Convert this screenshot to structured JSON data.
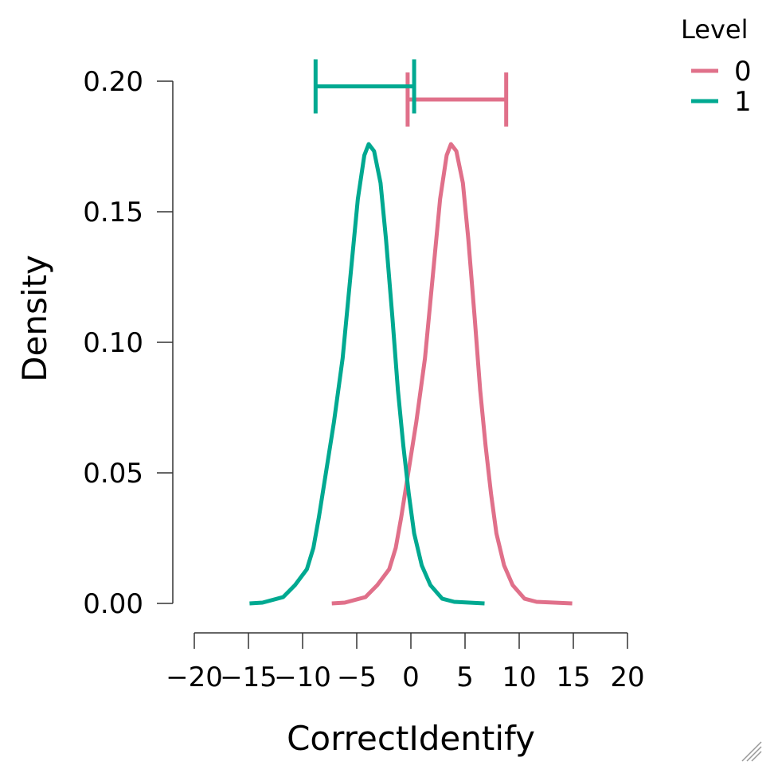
{
  "chart_data": {
    "type": "line",
    "title": "",
    "xlabel": "CorrectIdentify",
    "ylabel": "Density",
    "xlim": [
      -20,
      20
    ],
    "ylim": [
      0,
      0.2
    ],
    "xticks": [
      "-20",
      "-15",
      "-10",
      "-5",
      "0",
      "5",
      "10",
      "15",
      "20"
    ],
    "yticks": [
      "0.00",
      "0.05",
      "0.10",
      "0.15",
      "0.20"
    ],
    "grid": false,
    "legend": {
      "title": "Level",
      "placement": "top-right"
    },
    "series": [
      {
        "name": "0",
        "color": "#e0708a",
        "x": [
          -7.3,
          -6.1,
          -4.2,
          -3.1,
          -2.0,
          -1.4,
          -0.9,
          -0.2,
          0.5,
          1.3,
          2.0,
          2.7,
          3.3,
          3.7,
          4.2,
          4.8,
          5.3,
          5.9,
          6.4,
          6.9,
          7.4,
          7.9,
          8.6,
          9.4,
          10.5,
          11.6,
          14.9
        ],
        "y": [
          0,
          0.0003,
          0.0024,
          0.007,
          0.0131,
          0.0213,
          0.0329,
          0.0512,
          0.0695,
          0.0939,
          0.1244,
          0.1549,
          0.1716,
          0.1759,
          0.1732,
          0.161,
          0.1396,
          0.1091,
          0.0817,
          0.0604,
          0.0421,
          0.0268,
          0.0146,
          0.007,
          0.0018,
          0.0006,
          0
        ],
        "interval": {
          "low": -0.3,
          "high": 8.8,
          "y": 0.193
        }
      },
      {
        "name": "1",
        "color": "#00a991",
        "x": [
          -14.9,
          -13.7,
          -11.8,
          -10.7,
          -9.6,
          -9.0,
          -8.5,
          -7.8,
          -7.1,
          -6.3,
          -5.6,
          -4.9,
          -4.3,
          -3.9,
          -3.4,
          -2.8,
          -2.3,
          -1.7,
          -1.2,
          -0.7,
          -0.2,
          0.3,
          1.0,
          1.8,
          2.9,
          4.0,
          6.8
        ],
        "y": [
          0,
          0.0003,
          0.0024,
          0.007,
          0.0131,
          0.0213,
          0.0329,
          0.0512,
          0.0695,
          0.0939,
          0.1244,
          0.1549,
          0.1716,
          0.1759,
          0.1732,
          0.161,
          0.1396,
          0.1091,
          0.0817,
          0.0604,
          0.0421,
          0.0268,
          0.0146,
          0.007,
          0.0018,
          0.0006,
          0
        ],
        "interval": {
          "low": -8.8,
          "high": 0.3,
          "y": 0.198
        }
      }
    ]
  }
}
